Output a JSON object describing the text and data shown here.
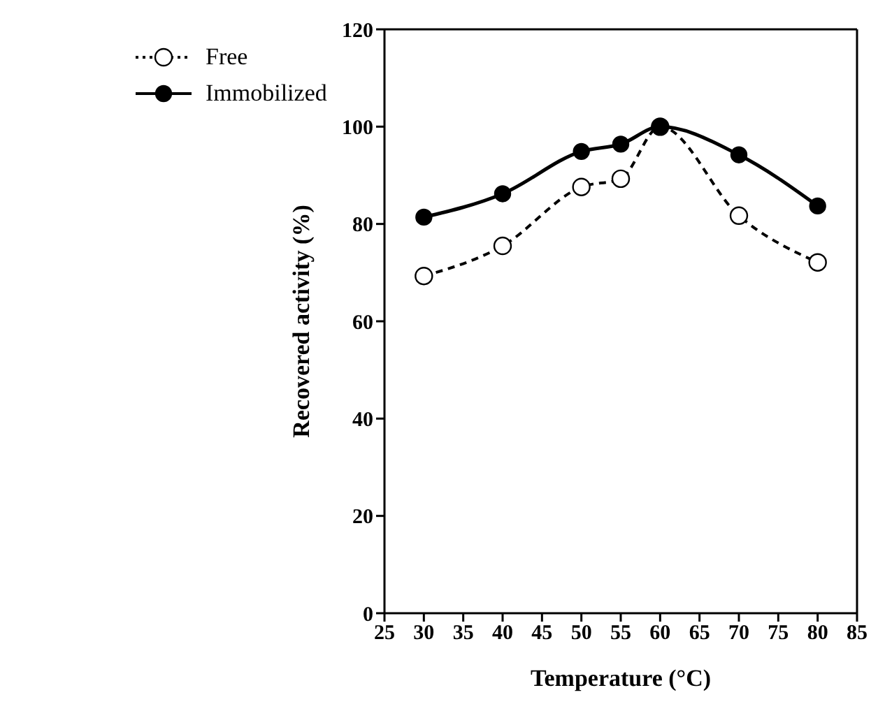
{
  "chart_data": {
    "type": "line",
    "xlabel": "Temperature (°C)",
    "ylabel": "Recovered activity (%)",
    "x": [
      30,
      40,
      50,
      55,
      60,
      70,
      80
    ],
    "series": [
      {
        "name": "Free",
        "color": "#000000",
        "line_style": "dashed",
        "marker": "circle",
        "values": [
          69.3,
          75.5,
          87.6,
          89.3,
          100,
          81.7,
          72.1
        ]
      },
      {
        "name": "Immobilized",
        "color": "#000000",
        "line_style": "solid",
        "marker": "circle",
        "values": [
          81.4,
          86.2,
          94.9,
          96.4,
          100,
          94.2,
          83.7
        ]
      }
    ],
    "xlim": [
      25,
      85
    ],
    "xticks": [
      25,
      30,
      35,
      40,
      45,
      50,
      55,
      60,
      65,
      70,
      75,
      80,
      85
    ],
    "ylim": [
      0,
      120
    ],
    "yticks": [
      0,
      20,
      40,
      60,
      80,
      100,
      120
    ],
    "grid": false,
    "legend": "top left"
  }
}
